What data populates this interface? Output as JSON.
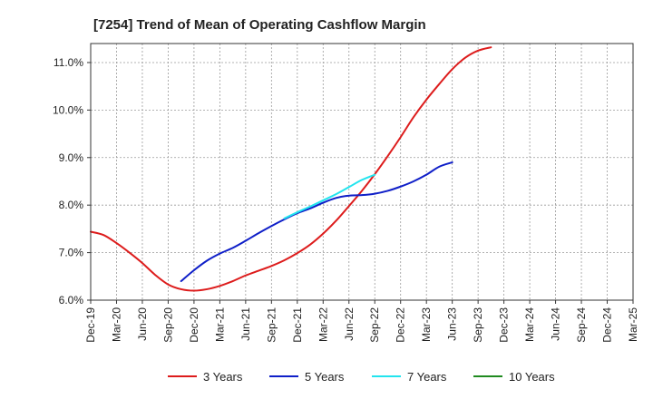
{
  "chart_data": {
    "type": "line",
    "title": "[7254]  Trend of Mean of Operating Cashflow Margin",
    "xlabel": "",
    "ylabel": "",
    "ylim": [
      6.0,
      11.4
    ],
    "y_ticks": [
      6.0,
      7.0,
      8.0,
      9.0,
      10.0,
      11.0
    ],
    "y_tick_labels": [
      "6.0%",
      "7.0%",
      "8.0%",
      "9.0%",
      "10.0%",
      "11.0%"
    ],
    "x_tick_labels": [
      "Dec-19",
      "Mar-20",
      "Jun-20",
      "Sep-20",
      "Dec-20",
      "Mar-21",
      "Jun-21",
      "Sep-21",
      "Dec-21",
      "Mar-22",
      "Jun-22",
      "Sep-22",
      "Dec-22",
      "Mar-23",
      "Jun-23",
      "Sep-23",
      "Dec-23",
      "Mar-24",
      "Jun-24",
      "Sep-24",
      "Dec-24",
      "Mar-25"
    ],
    "series": [
      {
        "name": "3 Years",
        "color": "#dd1c1c",
        "values": [
          7.44,
          7.37,
          7.2,
          7.0,
          6.78,
          6.53,
          6.33,
          6.23,
          6.2,
          6.23,
          6.3,
          6.4,
          6.52,
          6.62,
          6.72,
          6.84,
          6.99,
          7.17,
          7.4,
          7.67,
          7.98,
          8.3,
          8.65,
          9.03,
          9.43,
          9.85,
          10.22,
          10.55,
          10.86,
          11.1,
          11.25,
          11.32
        ]
      },
      {
        "name": "5 Years",
        "color": "#0f1fc8",
        "start_index": 7,
        "values": [
          6.4,
          6.63,
          6.83,
          6.98,
          7.1,
          7.25,
          7.41,
          7.56,
          7.7,
          7.83,
          7.93,
          8.05,
          8.15,
          8.2,
          8.21,
          8.24,
          8.3,
          8.39,
          8.5,
          8.64,
          8.81,
          8.9
        ]
      },
      {
        "name": "7 Years",
        "color": "#22e4ee",
        "start_index": 15,
        "values": [
          7.72,
          7.85,
          7.97,
          8.1,
          8.23,
          8.38,
          8.53,
          8.64
        ]
      },
      {
        "name": "10 Years",
        "color": "#1f8a1f",
        "values": []
      }
    ],
    "legend_position": "bottom",
    "grid": true
  }
}
